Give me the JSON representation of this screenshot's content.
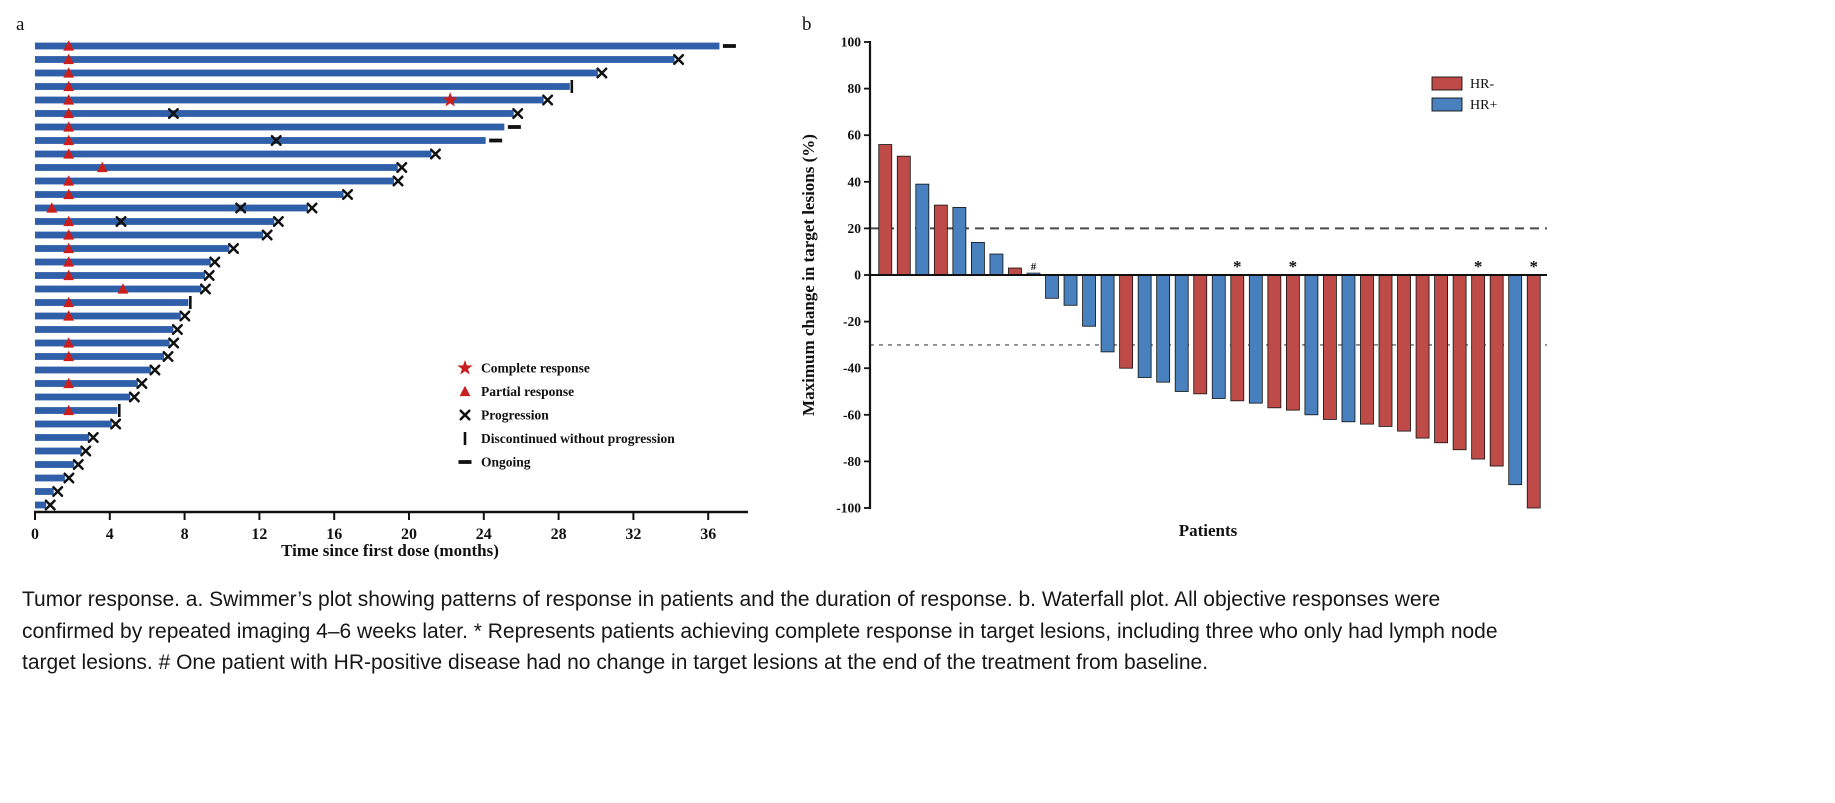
{
  "caption": {
    "text": "Tumor response. a. Swimmer’s plot showing patterns of response in patients and the duration of response. b. Waterfall plot. All objective responses were confirmed by repeated imaging 4–6 weeks later. * Represents patients achieving complete response in target lesions, including three who only had lymph node target lesions. # One patient with HR-positive disease had no change in target lesions at the end of the treatment from baseline."
  },
  "chart_data": [
    {
      "type": "bar",
      "subtype": "swimmer",
      "panel_label": "a",
      "xlabel": "Time since first dose (months)",
      "xlim": [
        0,
        38
      ],
      "xticks": [
        0,
        4,
        8,
        12,
        16,
        20,
        24,
        28,
        32,
        36
      ],
      "bar_color": "#2F5FA8",
      "marker_color": "#C81E1E",
      "legend": [
        {
          "marker": "complete_response",
          "label": "Complete response"
        },
        {
          "marker": "partial_response",
          "label": "Partial response"
        },
        {
          "marker": "progression",
          "label": "Progression"
        },
        {
          "marker": "discontinued",
          "label": "Discontinued without progression"
        },
        {
          "marker": "ongoing",
          "label": "Ongoing"
        }
      ],
      "patients": [
        {
          "duration": 36.6,
          "end": "ongoing",
          "markers": [
            {
              "type": "partial_response",
              "x": 1.8
            }
          ]
        },
        {
          "duration": 34.2,
          "end": "progression",
          "markers": [
            {
              "type": "partial_response",
              "x": 1.8
            }
          ]
        },
        {
          "duration": 30.1,
          "end": "progression",
          "markers": [
            {
              "type": "partial_response",
              "x": 1.8
            }
          ]
        },
        {
          "duration": 28.6,
          "end": "discontinued",
          "markers": [
            {
              "type": "partial_response",
              "x": 1.8
            }
          ]
        },
        {
          "duration": 27.2,
          "end": "progression",
          "markers": [
            {
              "type": "partial_response",
              "x": 1.8
            },
            {
              "type": "complete_response",
              "x": 22.2
            }
          ]
        },
        {
          "duration": 25.6,
          "end": "progression",
          "markers": [
            {
              "type": "partial_response",
              "x": 1.8
            },
            {
              "type": "progression",
              "x": 7.4
            }
          ]
        },
        {
          "duration": 25.1,
          "end": "ongoing",
          "markers": [
            {
              "type": "partial_response",
              "x": 1.8
            }
          ]
        },
        {
          "duration": 24.1,
          "end": "ongoing",
          "markers": [
            {
              "type": "partial_response",
              "x": 1.8
            },
            {
              "type": "progression",
              "x": 12.9
            }
          ]
        },
        {
          "duration": 21.2,
          "end": "progression",
          "markers": [
            {
              "type": "partial_response",
              "x": 1.8
            }
          ]
        },
        {
          "duration": 19.4,
          "end": "progression",
          "markers": [
            {
              "type": "partial_response",
              "x": 3.6
            }
          ]
        },
        {
          "duration": 19.2,
          "end": "progression",
          "markers": [
            {
              "type": "partial_response",
              "x": 1.8
            }
          ]
        },
        {
          "duration": 16.5,
          "end": "progression",
          "markers": [
            {
              "type": "partial_response",
              "x": 1.8
            }
          ]
        },
        {
          "duration": 14.6,
          "end": "progression",
          "markers": [
            {
              "type": "partial_response",
              "x": 0.9
            },
            {
              "type": "progression",
              "x": 11.0
            }
          ]
        },
        {
          "duration": 12.8,
          "end": "progression",
          "markers": [
            {
              "type": "partial_response",
              "x": 1.8
            },
            {
              "type": "progression",
              "x": 4.6
            }
          ]
        },
        {
          "duration": 12.2,
          "end": "progression",
          "markers": [
            {
              "type": "partial_response",
              "x": 1.8
            }
          ]
        },
        {
          "duration": 10.4,
          "end": "progression",
          "markers": [
            {
              "type": "partial_response",
              "x": 1.8
            }
          ]
        },
        {
          "duration": 9.4,
          "end": "progression",
          "markers": [
            {
              "type": "partial_response",
              "x": 1.8
            }
          ]
        },
        {
          "duration": 9.1,
          "end": "progression",
          "markers": [
            {
              "type": "partial_response",
              "x": 1.8
            }
          ]
        },
        {
          "duration": 8.9,
          "end": "progression",
          "markers": [
            {
              "type": "partial_response",
              "x": 4.7
            }
          ]
        },
        {
          "duration": 8.2,
          "end": "discontinued",
          "markers": [
            {
              "type": "partial_response",
              "x": 1.8
            }
          ]
        },
        {
          "duration": 7.8,
          "end": "progression",
          "markers": [
            {
              "type": "partial_response",
              "x": 1.8
            }
          ]
        },
        {
          "duration": 7.4,
          "end": "progression",
          "markers": []
        },
        {
          "duration": 7.2,
          "end": "progression",
          "markers": [
            {
              "type": "partial_response",
              "x": 1.8
            }
          ]
        },
        {
          "duration": 6.9,
          "end": "progression",
          "markers": [
            {
              "type": "partial_response",
              "x": 1.8
            }
          ]
        },
        {
          "duration": 6.2,
          "end": "progression",
          "markers": []
        },
        {
          "duration": 5.5,
          "end": "progression",
          "markers": [
            {
              "type": "partial_response",
              "x": 1.8
            }
          ]
        },
        {
          "duration": 5.1,
          "end": "progression",
          "markers": []
        },
        {
          "duration": 4.4,
          "end": "discontinued",
          "markers": [
            {
              "type": "partial_response",
              "x": 1.8
            }
          ]
        },
        {
          "duration": 4.1,
          "end": "progression",
          "markers": []
        },
        {
          "duration": 2.9,
          "end": "progression",
          "markers": []
        },
        {
          "duration": 2.5,
          "end": "progression",
          "markers": []
        },
        {
          "duration": 2.1,
          "end": "progression",
          "markers": []
        },
        {
          "duration": 1.6,
          "end": "progression",
          "markers": []
        },
        {
          "duration": 1.0,
          "end": "progression",
          "markers": []
        },
        {
          "duration": 0.6,
          "end": "progression",
          "markers": []
        }
      ]
    },
    {
      "type": "bar",
      "subtype": "waterfall",
      "panel_label": "b",
      "ylabel": "Maximum change in target lesions (%)",
      "xlabel": "Patients",
      "ylim": [
        -100,
        100
      ],
      "yticks": [
        100,
        80,
        60,
        40,
        20,
        0,
        -20,
        -40,
        -60,
        -80,
        -100
      ],
      "reference_lines": [
        {
          "y": 20,
          "style": "long-dash"
        },
        {
          "y": -30,
          "style": "short-dash"
        }
      ],
      "colors": {
        "HR-": "#BE4B48",
        "HR+": "#4980BE"
      },
      "legend": [
        "HR-",
        "HR+"
      ],
      "bars": [
        {
          "value": 56,
          "group": "HR-"
        },
        {
          "value": 51,
          "group": "HR-"
        },
        {
          "value": 39,
          "group": "HR+"
        },
        {
          "value": 30,
          "group": "HR-"
        },
        {
          "value": 29,
          "group": "HR+"
        },
        {
          "value": 14,
          "group": "HR+"
        },
        {
          "value": 9,
          "group": "HR+"
        },
        {
          "value": 3,
          "group": "HR-"
        },
        {
          "value": 0,
          "group": "HR+",
          "annotation": "#"
        },
        {
          "value": -10,
          "group": "HR+"
        },
        {
          "value": -13,
          "group": "HR+"
        },
        {
          "value": -22,
          "group": "HR+"
        },
        {
          "value": -33,
          "group": "HR+"
        },
        {
          "value": -40,
          "group": "HR-"
        },
        {
          "value": -44,
          "group": "HR+"
        },
        {
          "value": -46,
          "group": "HR+"
        },
        {
          "value": -50,
          "group": "HR+"
        },
        {
          "value": -51,
          "group": "HR-"
        },
        {
          "value": -53,
          "group": "HR+"
        },
        {
          "value": -54,
          "group": "HR-",
          "annotation": "*"
        },
        {
          "value": -55,
          "group": "HR+"
        },
        {
          "value": -57,
          "group": "HR-"
        },
        {
          "value": -58,
          "group": "HR-",
          "annotation": "*"
        },
        {
          "value": -60,
          "group": "HR+"
        },
        {
          "value": -62,
          "group": "HR-"
        },
        {
          "value": -63,
          "group": "HR+"
        },
        {
          "value": -64,
          "group": "HR-"
        },
        {
          "value": -65,
          "group": "HR-"
        },
        {
          "value": -67,
          "group": "HR-"
        },
        {
          "value": -70,
          "group": "HR-"
        },
        {
          "value": -72,
          "group": "HR-"
        },
        {
          "value": -75,
          "group": "HR-"
        },
        {
          "value": -79,
          "group": "HR-",
          "annotation": "*"
        },
        {
          "value": -82,
          "group": "HR-"
        },
        {
          "value": -90,
          "group": "HR+"
        },
        {
          "value": -100,
          "group": "HR-",
          "annotation": "*"
        }
      ]
    }
  ]
}
